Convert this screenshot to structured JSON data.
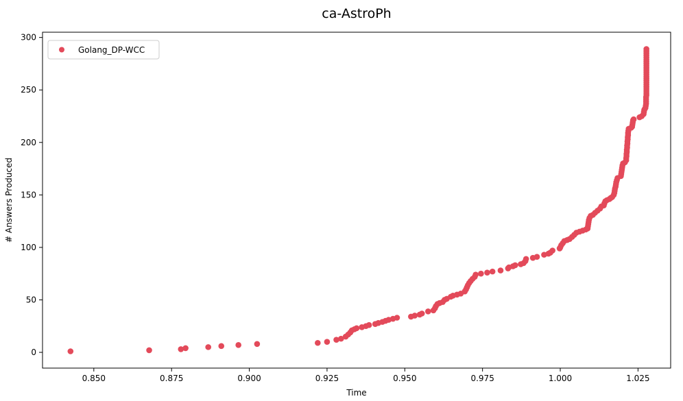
{
  "chart_data": {
    "type": "scatter",
    "title": "ca-AstroPh",
    "xlabel": "Time",
    "ylabel": "# Answers Produced",
    "xlim": [
      0.8335,
      1.0355
    ],
    "ylim": [
      -15,
      305
    ],
    "xticks": [
      0.85,
      0.875,
      0.9,
      0.925,
      0.95,
      0.975,
      1.0,
      1.025
    ],
    "xtick_labels": [
      "0.850",
      "0.875",
      "0.900",
      "0.925",
      "0.950",
      "0.975",
      "1.000",
      "1.025"
    ],
    "yticks": [
      0,
      50,
      100,
      150,
      200,
      250,
      300
    ],
    "ytick_labels": [
      "0",
      "50",
      "100",
      "150",
      "200",
      "250",
      "300"
    ],
    "grid": false,
    "legend_position": "top-left",
    "series": [
      {
        "name": "Golang_DP-WCC",
        "color": "#e34a5a",
        "points": [
          [
            0.8425,
            1
          ],
          [
            0.8678,
            2
          ],
          [
            0.878,
            3
          ],
          [
            0.8795,
            4
          ],
          [
            0.8868,
            5
          ],
          [
            0.891,
            6
          ],
          [
            0.8965,
            7
          ],
          [
            0.9025,
            8
          ],
          [
            0.922,
            9
          ],
          [
            0.925,
            10
          ],
          [
            0.928,
            12
          ],
          [
            0.9295,
            13
          ],
          [
            0.931,
            15
          ],
          [
            0.9318,
            17
          ],
          [
            0.9325,
            19
          ],
          [
            0.933,
            21
          ],
          [
            0.9338,
            22
          ],
          [
            0.9345,
            23
          ],
          [
            0.9362,
            24
          ],
          [
            0.9375,
            25
          ],
          [
            0.9385,
            26
          ],
          [
            0.9405,
            27
          ],
          [
            0.9415,
            28
          ],
          [
            0.9428,
            29
          ],
          [
            0.9438,
            30
          ],
          [
            0.9448,
            31
          ],
          [
            0.9462,
            32
          ],
          [
            0.9475,
            33
          ],
          [
            0.952,
            34
          ],
          [
            0.9532,
            35
          ],
          [
            0.9548,
            36
          ],
          [
            0.9555,
            37
          ],
          [
            0.9575,
            39
          ],
          [
            0.9592,
            40
          ],
          [
            0.9597,
            42
          ],
          [
            0.96,
            44
          ],
          [
            0.9605,
            46
          ],
          [
            0.9612,
            47
          ],
          [
            0.9622,
            48
          ],
          [
            0.9628,
            50
          ],
          [
            0.9635,
            51
          ],
          [
            0.9648,
            53
          ],
          [
            0.9655,
            54
          ],
          [
            0.9668,
            55
          ],
          [
            0.968,
            56
          ],
          [
            0.9693,
            58
          ],
          [
            0.9697,
            60
          ],
          [
            0.97,
            62
          ],
          [
            0.9703,
            64
          ],
          [
            0.9707,
            66
          ],
          [
            0.9712,
            68
          ],
          [
            0.9718,
            70
          ],
          [
            0.9725,
            72
          ],
          [
            0.9728,
            74
          ],
          [
            0.9745,
            75
          ],
          [
            0.9765,
            76
          ],
          [
            0.9782,
            77
          ],
          [
            0.9808,
            78
          ],
          [
            0.9832,
            80
          ],
          [
            0.9835,
            81
          ],
          [
            0.9848,
            82
          ],
          [
            0.9855,
            83
          ],
          [
            0.9873,
            84
          ],
          [
            0.9882,
            85
          ],
          [
            0.9888,
            87
          ],
          [
            0.989,
            89
          ],
          [
            0.9912,
            90
          ],
          [
            0.9925,
            91
          ],
          [
            0.9948,
            93
          ],
          [
            0.9962,
            94
          ],
          [
            0.9968,
            95
          ],
          [
            0.9975,
            97
          ],
          [
            0.9998,
            99
          ],
          [
            1.0,
            100
          ],
          [
            1.0003,
            102
          ],
          [
            1.0008,
            104
          ],
          [
            1.0013,
            106
          ],
          [
            1.0022,
            107
          ],
          [
            1.003,
            108
          ],
          [
            1.0038,
            110
          ],
          [
            1.0045,
            112
          ],
          [
            1.0052,
            114
          ],
          [
            1.0062,
            115
          ],
          [
            1.0072,
            116
          ],
          [
            1.0082,
            117
          ],
          [
            1.0088,
            118
          ],
          [
            1.0089,
            120
          ],
          [
            1.009,
            122
          ],
          [
            1.0091,
            124
          ],
          [
            1.0092,
            126
          ],
          [
            1.0094,
            128
          ],
          [
            1.0098,
            130
          ],
          [
            1.0105,
            131
          ],
          [
            1.0112,
            133
          ],
          [
            1.012,
            135
          ],
          [
            1.0128,
            137
          ],
          [
            1.0132,
            139
          ],
          [
            1.014,
            140
          ],
          [
            1.0142,
            142
          ],
          [
            1.0145,
            144
          ],
          [
            1.015,
            145
          ],
          [
            1.0158,
            146
          ],
          [
            1.0162,
            147
          ],
          [
            1.0167,
            148
          ],
          [
            1.0172,
            150
          ],
          [
            1.0174,
            152
          ],
          [
            1.0175,
            154
          ],
          [
            1.0176,
            156
          ],
          [
            1.0178,
            158
          ],
          [
            1.0179,
            160
          ],
          [
            1.018,
            162
          ],
          [
            1.0182,
            164
          ],
          [
            1.0184,
            166
          ],
          [
            1.0195,
            168
          ],
          [
            1.0196,
            170
          ],
          [
            1.0197,
            172
          ],
          [
            1.0198,
            174
          ],
          [
            1.0199,
            176
          ],
          [
            1.02,
            178
          ],
          [
            1.0202,
            180
          ],
          [
            1.0208,
            181
          ],
          [
            1.0212,
            183
          ],
          [
            1.0212,
            185
          ],
          [
            1.0213,
            187
          ],
          [
            1.0213,
            189
          ],
          [
            1.0214,
            191
          ],
          [
            1.0214,
            193
          ],
          [
            1.0215,
            195
          ],
          [
            1.0215,
            197
          ],
          [
            1.0216,
            199
          ],
          [
            1.0216,
            201
          ],
          [
            1.0217,
            203
          ],
          [
            1.0217,
            205
          ],
          [
            1.0218,
            207
          ],
          [
            1.0218,
            209
          ],
          [
            1.0219,
            211
          ],
          [
            1.022,
            213
          ],
          [
            1.0228,
            214
          ],
          [
            1.0231,
            215
          ],
          [
            1.0232,
            217
          ],
          [
            1.0233,
            219
          ],
          [
            1.0234,
            221
          ],
          [
            1.0236,
            222
          ],
          [
            1.0255,
            224
          ],
          [
            1.0262,
            225
          ],
          [
            1.0268,
            227
          ],
          [
            1.0269,
            229
          ],
          [
            1.027,
            231
          ],
          [
            1.0272,
            232
          ],
          [
            1.0274,
            233
          ],
          [
            1.0275,
            235
          ],
          [
            1.0276,
            237
          ],
          [
            1.0276,
            239
          ],
          [
            1.0276,
            241
          ],
          [
            1.0276,
            243
          ],
          [
            1.0277,
            245
          ],
          [
            1.0277,
            247
          ],
          [
            1.0277,
            249
          ],
          [
            1.0277,
            251
          ],
          [
            1.0277,
            253
          ],
          [
            1.0277,
            255
          ],
          [
            1.0277,
            257
          ],
          [
            1.0277,
            259
          ],
          [
            1.0277,
            261
          ],
          [
            1.0277,
            263
          ],
          [
            1.0277,
            265
          ],
          [
            1.0277,
            267
          ],
          [
            1.0277,
            269
          ],
          [
            1.0277,
            271
          ],
          [
            1.0277,
            273
          ],
          [
            1.0277,
            275
          ],
          [
            1.0277,
            277
          ],
          [
            1.0277,
            279
          ],
          [
            1.0277,
            281
          ],
          [
            1.0277,
            283
          ],
          [
            1.0277,
            285
          ],
          [
            1.0277,
            287
          ],
          [
            1.0277,
            289
          ]
        ]
      }
    ]
  }
}
